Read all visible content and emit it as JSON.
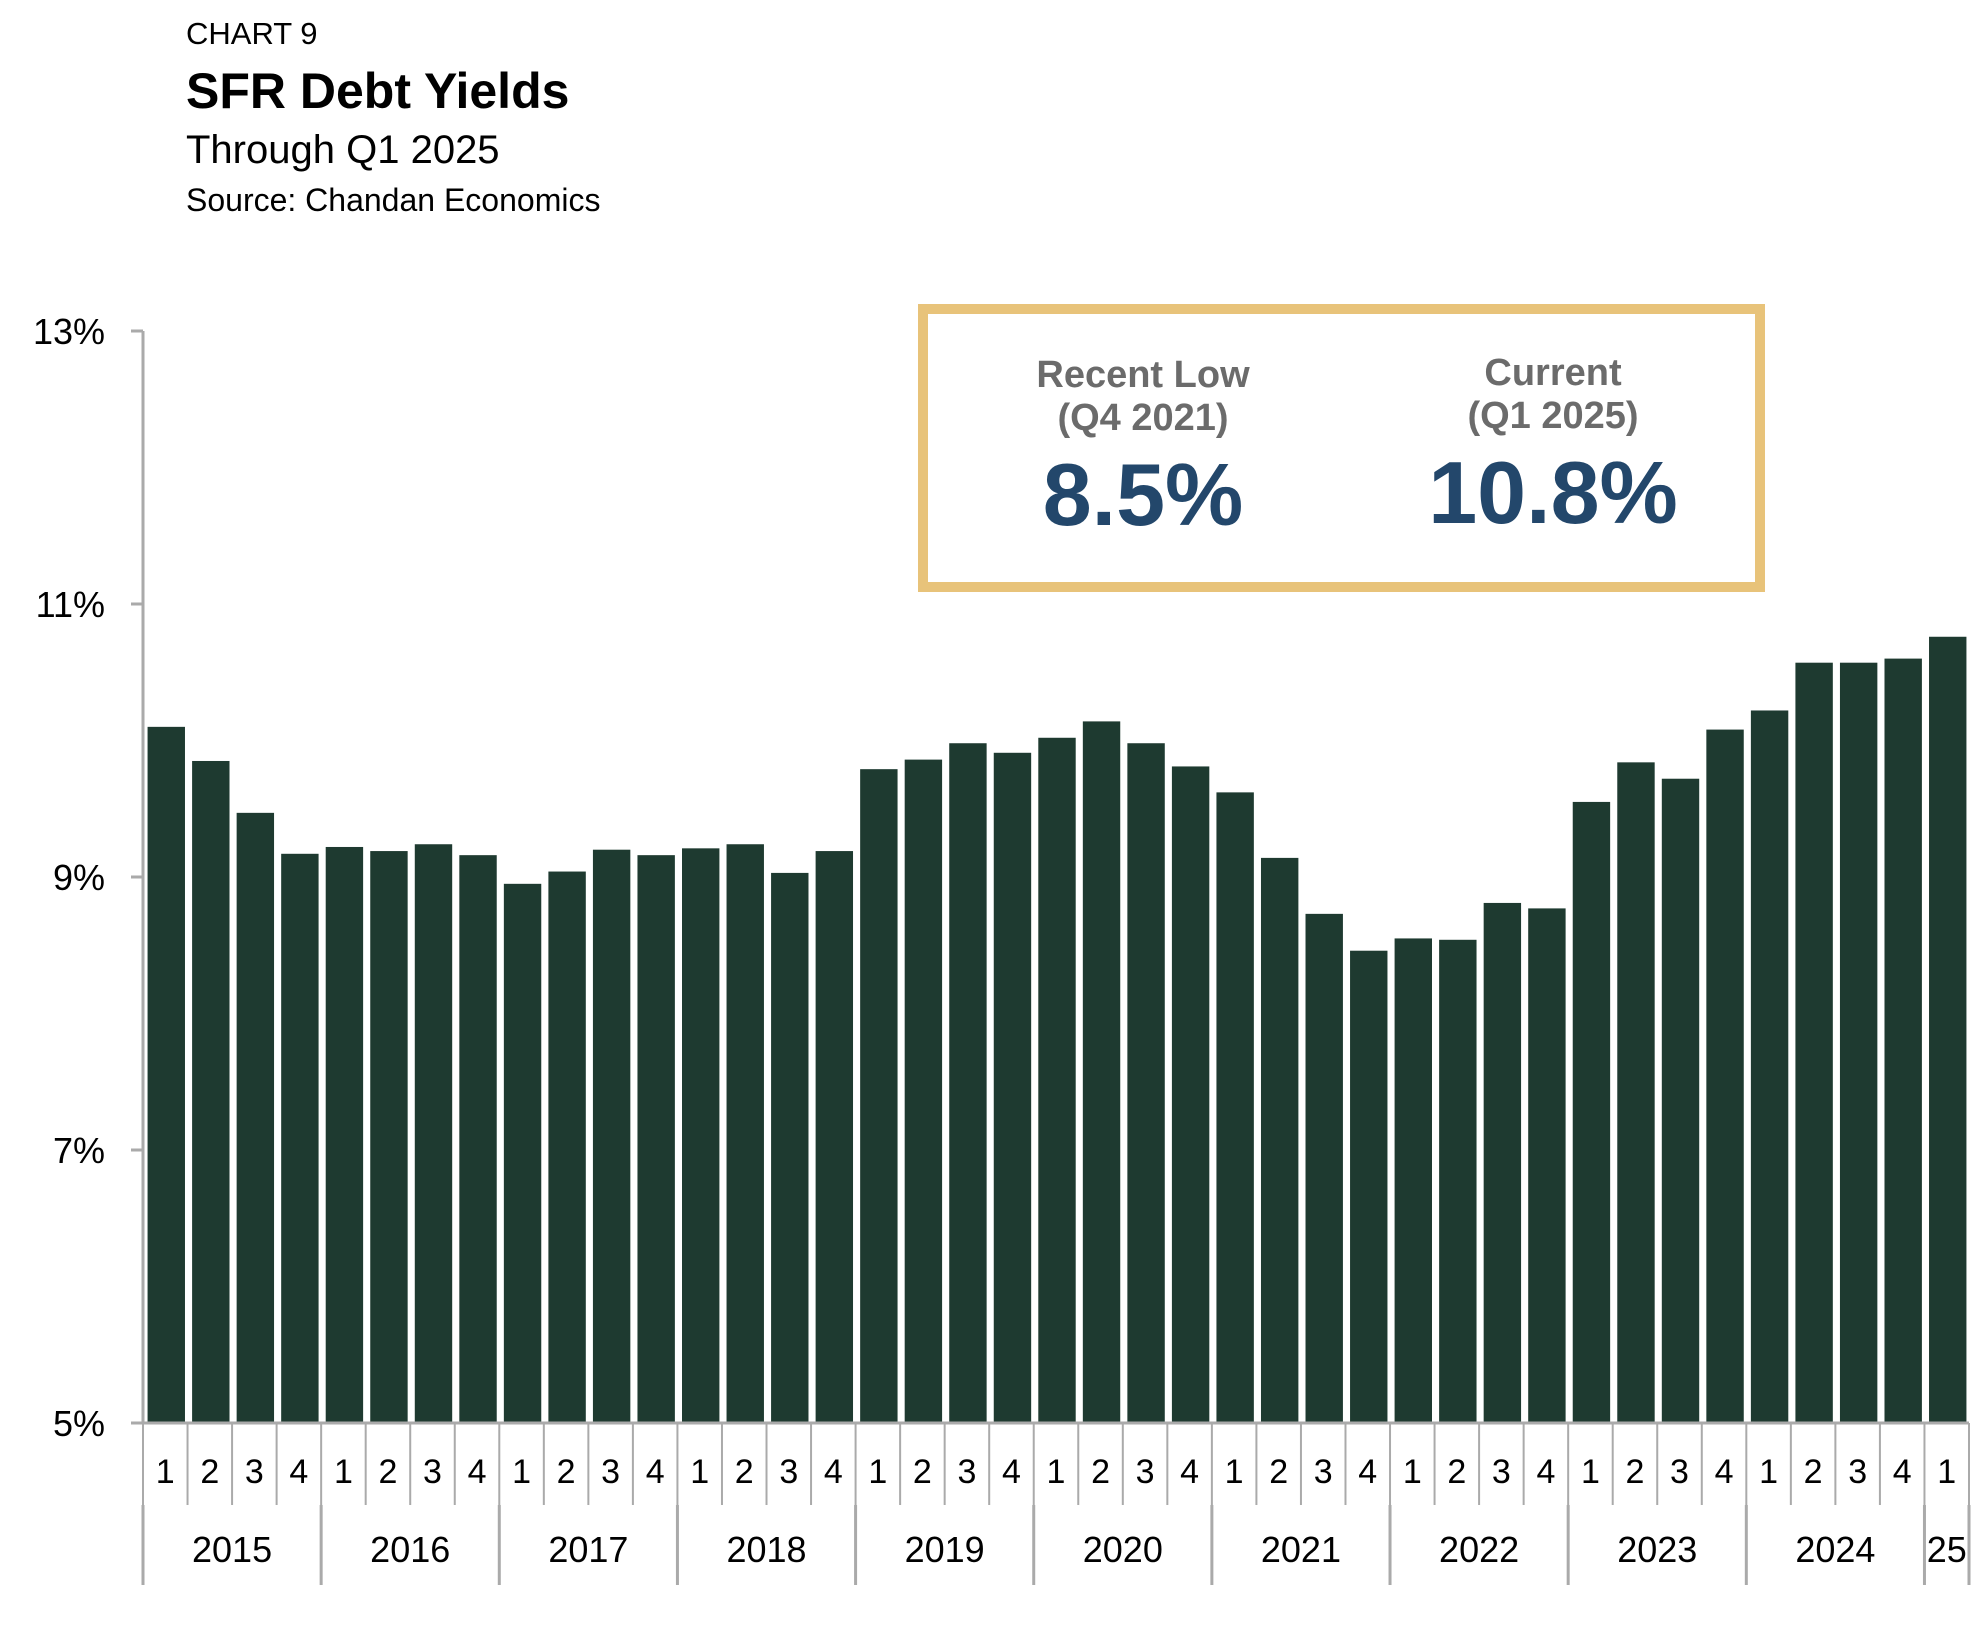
{
  "header": {
    "kicker": "CHART 9",
    "title": "SFR Debt Yields",
    "subtitle": "Through Q1 2025",
    "source": "Source: Chandan Economics"
  },
  "callout": {
    "recent_low_label": "Recent Low",
    "recent_low_period": "(Q4 2021)",
    "recent_low_value": "8.5%",
    "current_label": "Current",
    "current_period": "(Q1 2025)",
    "current_value": "10.8%"
  },
  "colors": {
    "bar": "#1e3a30",
    "axis": "#aaaaaa",
    "callout_border": "#e8c37a",
    "callout_value": "#23476b",
    "callout_label": "#6b6b6b"
  },
  "chart_data": {
    "type": "bar",
    "title": "SFR Debt Yields",
    "ylim": [
      5,
      13
    ],
    "y_ticks": [
      "5%",
      "7%",
      "9%",
      "11%",
      "13%"
    ],
    "grid": false,
    "quarter_labels": [
      "1",
      "2",
      "3",
      "4",
      "1",
      "2",
      "3",
      "4",
      "1",
      "2",
      "3",
      "4",
      "1",
      "2",
      "3",
      "4",
      "1",
      "2",
      "3",
      "4",
      "1",
      "2",
      "3",
      "4",
      "1",
      "2",
      "3",
      "4",
      "1",
      "2",
      "3",
      "4",
      "1",
      "2",
      "3",
      "4",
      "1",
      "2",
      "3",
      "4",
      "1"
    ],
    "year_groups": [
      {
        "label": "2015",
        "quarters": 4
      },
      {
        "label": "2016",
        "quarters": 4
      },
      {
        "label": "2017",
        "quarters": 4
      },
      {
        "label": "2018",
        "quarters": 4
      },
      {
        "label": "2019",
        "quarters": 4
      },
      {
        "label": "2020",
        "quarters": 4
      },
      {
        "label": "2021",
        "quarters": 4
      },
      {
        "label": "2022",
        "quarters": 4
      },
      {
        "label": "2023",
        "quarters": 4
      },
      {
        "label": "2024",
        "quarters": 4
      },
      {
        "label": "25",
        "quarters": 1
      }
    ],
    "values": [
      10.1,
      9.85,
      9.47,
      9.17,
      9.22,
      9.19,
      9.24,
      9.16,
      8.95,
      9.04,
      9.2,
      9.16,
      9.21,
      9.24,
      9.03,
      9.19,
      9.79,
      9.86,
      9.98,
      9.91,
      10.02,
      10.14,
      9.98,
      9.81,
      9.62,
      9.14,
      8.73,
      8.46,
      8.55,
      8.54,
      8.81,
      8.77,
      9.55,
      9.84,
      9.72,
      10.08,
      10.22,
      10.57,
      10.57,
      10.6,
      10.76
    ]
  }
}
